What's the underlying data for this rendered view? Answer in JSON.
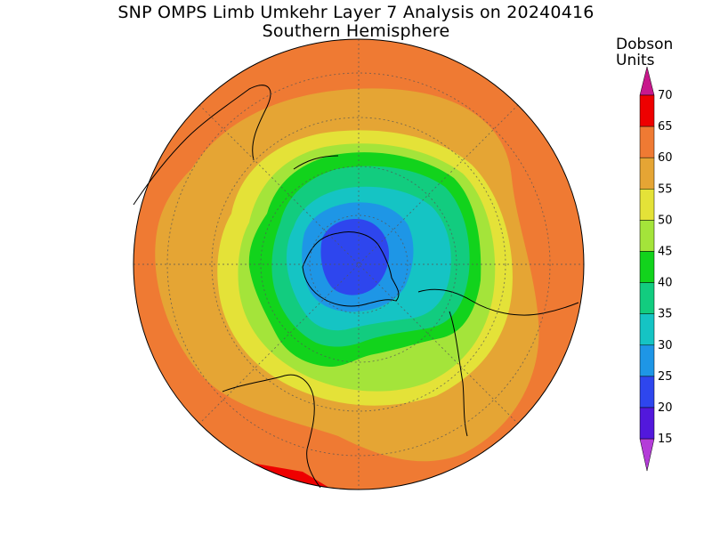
{
  "title": {
    "line1": "SNP OMPS Limb Umkehr Layer 7 Analysis on 20240416",
    "line2": "Southern Hemisphere"
  },
  "units": {
    "line1": "Dobson",
    "line2": "Units"
  },
  "colorbar": {
    "levels": [
      {
        "value": "70",
        "color": "#ee0000"
      },
      {
        "value": "65",
        "color": "#ef7a33"
      },
      {
        "value": "60",
        "color": "#e5a534"
      },
      {
        "value": "55",
        "color": "#e4e238"
      },
      {
        "value": "50",
        "color": "#a4e43a"
      },
      {
        "value": "45",
        "color": "#12d31c"
      },
      {
        "value": "40",
        "color": "#12cc7f"
      },
      {
        "value": "35",
        "color": "#15c4c4"
      },
      {
        "value": "30",
        "color": "#1e96e6"
      },
      {
        "value": "25",
        "color": "#2e46ee"
      },
      {
        "value": "20",
        "color": "#5218dc"
      },
      {
        "value": "15",
        "color": "#8a18d8"
      }
    ],
    "top_arrow_color": "#c8188c",
    "bottom_arrow_color": "#b43cd8"
  },
  "map": {
    "projection": "south polar stereographic",
    "field": "ozone column, Umkehr layer 7",
    "background_color": "#ef7a33",
    "graticule": "dotted lat/lon grid",
    "coastlines": true
  }
}
